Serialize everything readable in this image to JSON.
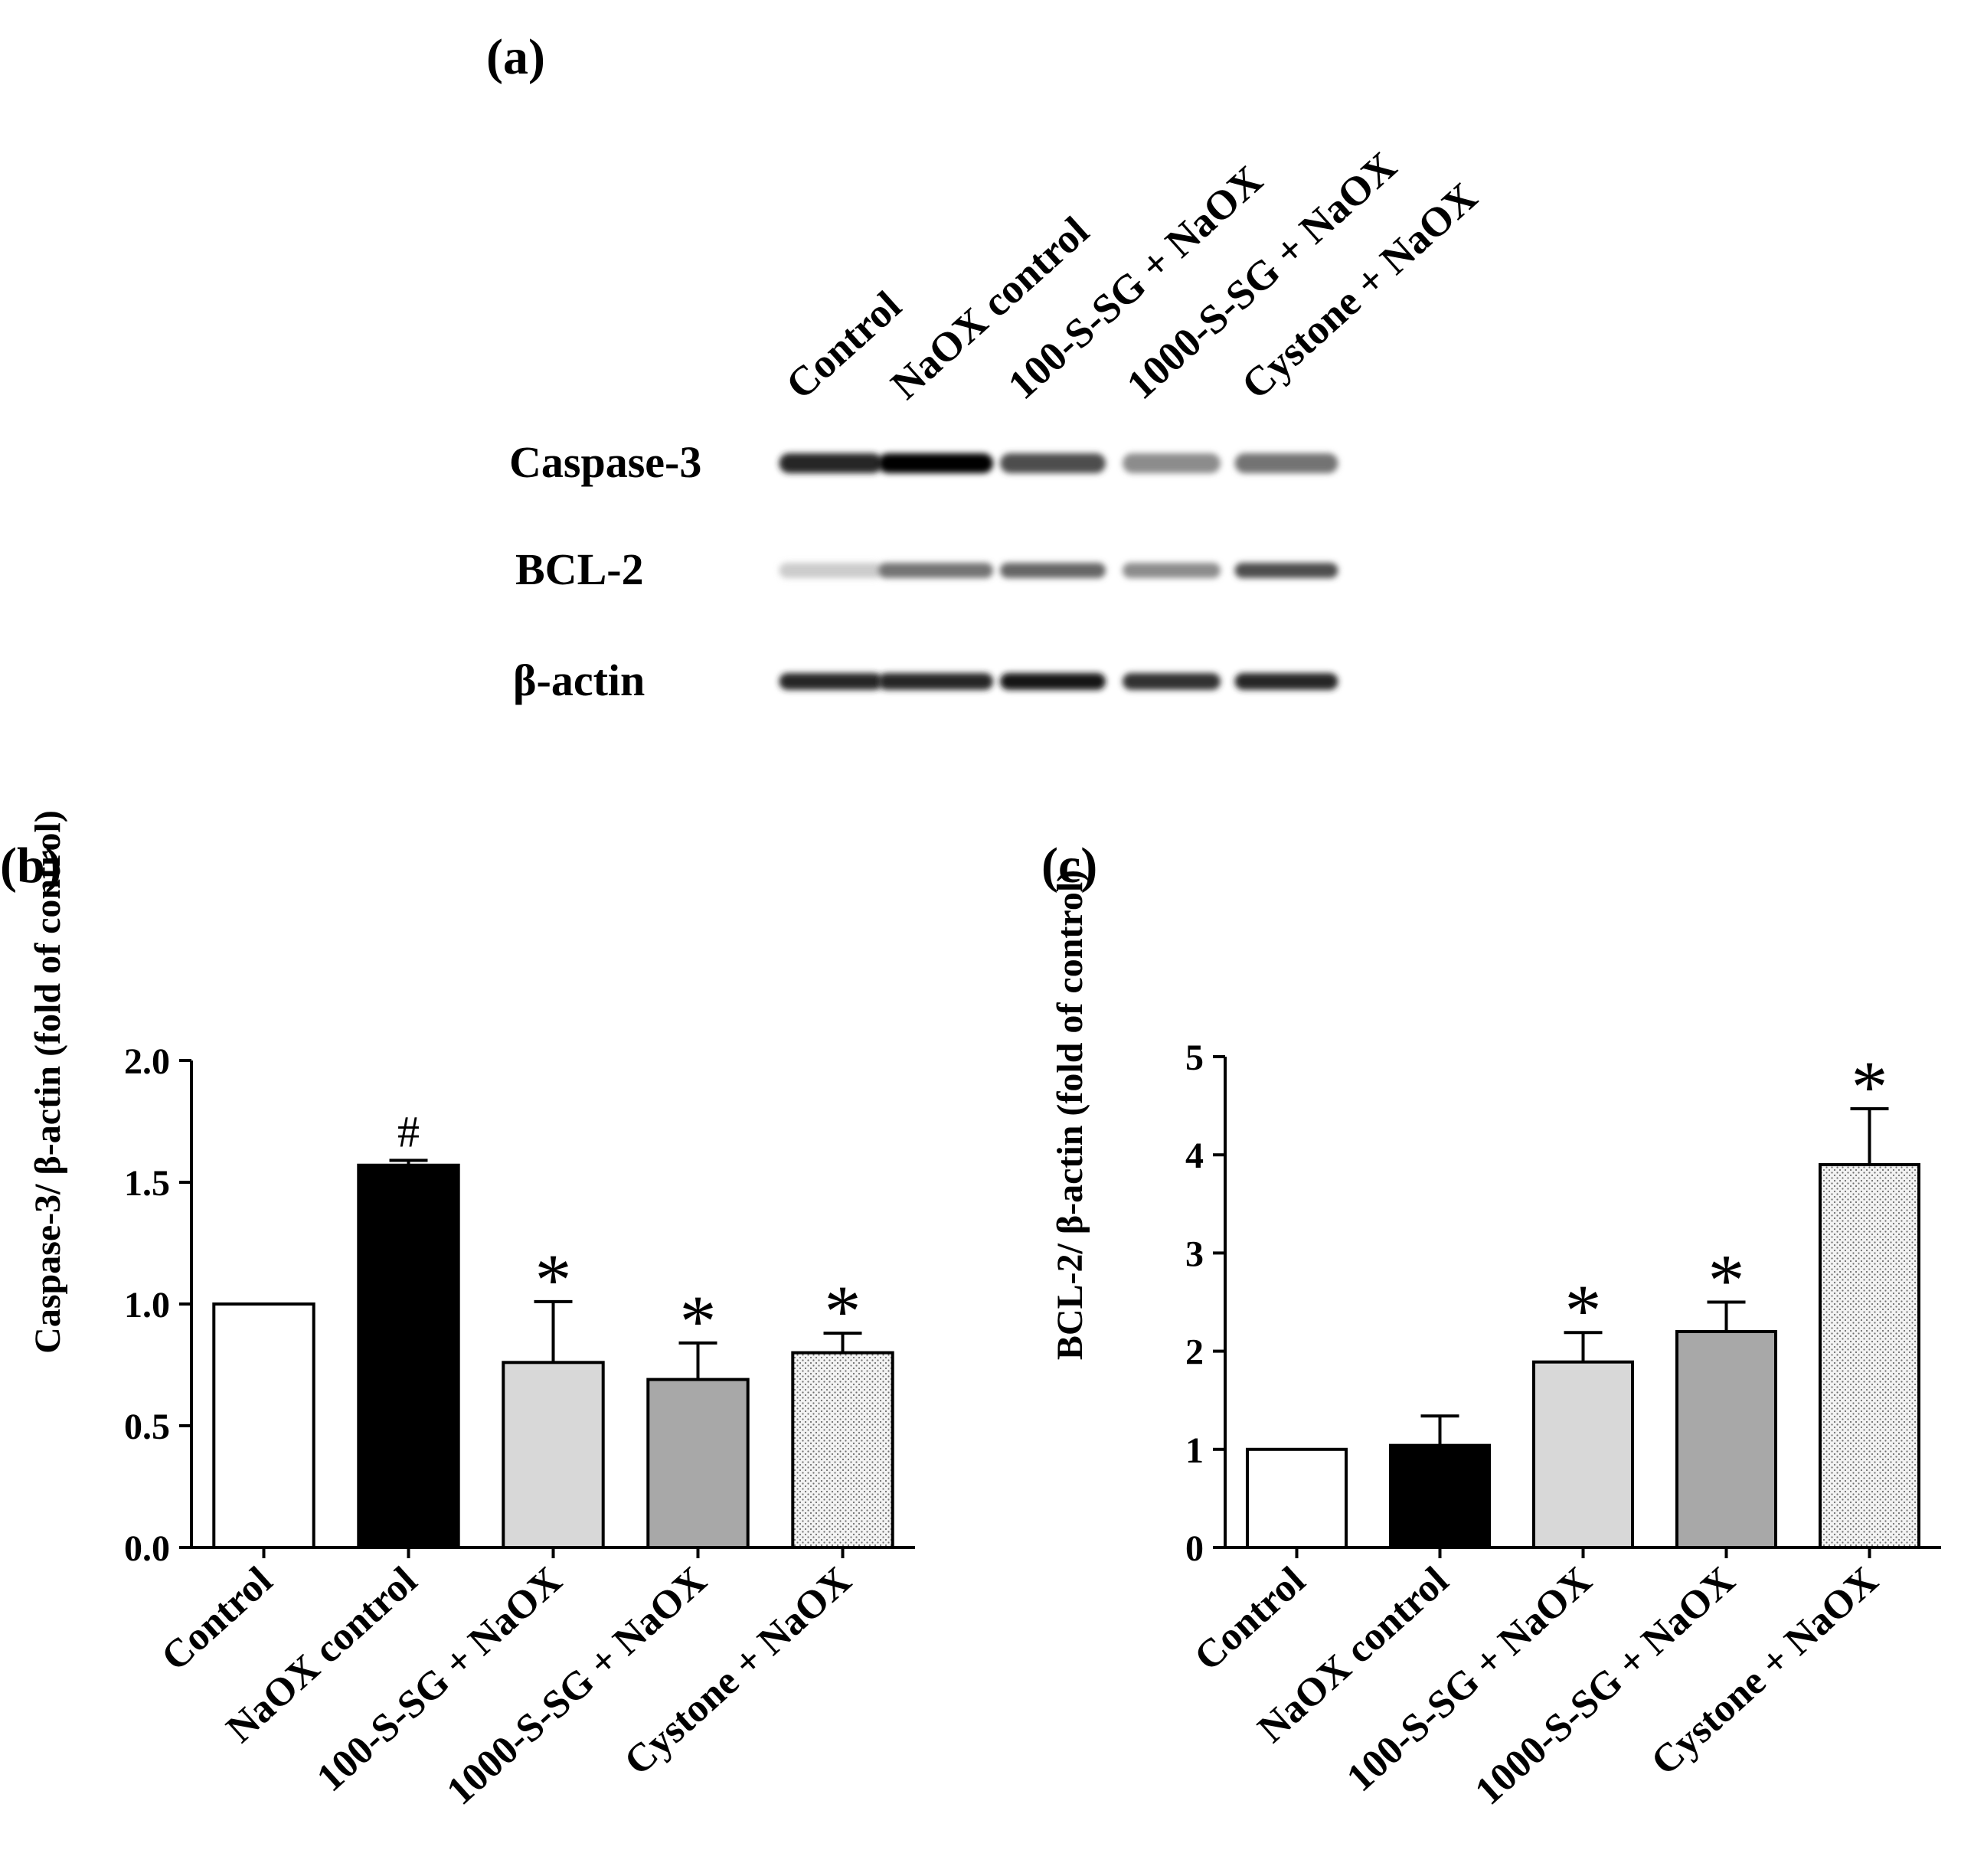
{
  "colors": {
    "ink": "#000000",
    "background": "#ffffff",
    "control_fill": "#ffffff",
    "naox_fill": "#000000",
    "sg100_fill": "#d8d8d8",
    "sg1000_fill": "#a8a8a8",
    "cystone_fill": "#ededed"
  },
  "blot": {
    "panel_label": "(a)",
    "lanes": [
      "Control",
      "NaOX control",
      "100-S-SG + NaOX",
      "1000-S-SG + NaOX",
      "Cystone + NaOX"
    ],
    "rows": [
      {
        "label": "Caspase-3",
        "intensity": [
          0.85,
          1.0,
          0.7,
          0.45,
          0.55
        ]
      },
      {
        "label": "BCL-2",
        "intensity": [
          0.2,
          0.55,
          0.6,
          0.45,
          0.7
        ]
      },
      {
        "label": "β-actin",
        "intensity": [
          0.85,
          0.85,
          0.9,
          0.8,
          0.85
        ]
      }
    ]
  },
  "chart_data": [
    {
      "type": "bar",
      "panel_label": "(b)",
      "title": "",
      "xlabel": "",
      "ylabel": "Caspase-3/ β-actin (fold of control)",
      "ylim": [
        0,
        2.0
      ],
      "yticks": [
        "0.0",
        "0.5",
        "1.0",
        "1.5",
        "2.0"
      ],
      "categories": [
        "Control",
        "NaOX control",
        "100-S-SG + NaOX",
        "1000-S-SG + NaOX",
        "Cystone + NaOX"
      ],
      "values": [
        1.0,
        1.57,
        0.76,
        0.69,
        0.8
      ],
      "errors": [
        0,
        0.02,
        0.25,
        0.15,
        0.08
      ],
      "annotations": [
        "",
        "#",
        "*",
        "*",
        "*"
      ],
      "grid": false
    },
    {
      "type": "bar",
      "panel_label": "(c)",
      "title": "",
      "xlabel": "",
      "ylabel": "BCL-2/ β-actin (fold of control)",
      "ylim": [
        0,
        5
      ],
      "yticks": [
        "0",
        "1",
        "2",
        "3",
        "4",
        "5"
      ],
      "categories": [
        "Control",
        "NaOX control",
        "100-S-SG + NaOX",
        "1000-S-SG + NaOX",
        "Cystone + NaOX"
      ],
      "values": [
        1.0,
        1.04,
        1.89,
        2.2,
        3.9
      ],
      "errors": [
        0,
        0.3,
        0.3,
        0.3,
        0.57
      ],
      "annotations": [
        "",
        "",
        "*",
        "*",
        "*"
      ],
      "grid": false
    }
  ]
}
